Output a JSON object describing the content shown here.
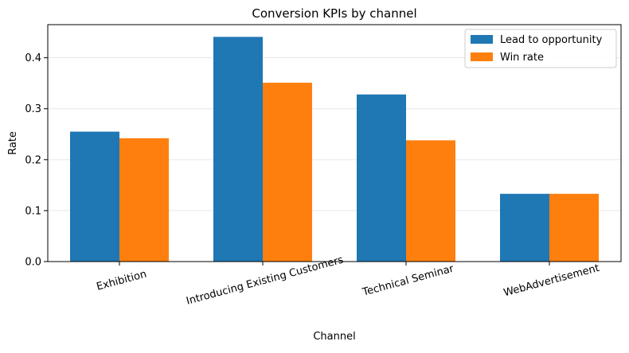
{
  "chart_data": {
    "type": "bar",
    "title": "Conversion KPIs by channel",
    "xlabel": "Channel",
    "ylabel": "Rate",
    "categories": [
      "Exhibition",
      "Introducing Existing Customers",
      "Technical Seminar",
      "WebAdvertisement"
    ],
    "series": [
      {
        "name": "Lead to opportunity",
        "color": "#1f77b4",
        "values": [
          0.255,
          0.441,
          0.328,
          0.133
        ]
      },
      {
        "name": "Win rate",
        "color": "#ff7f0e",
        "values": [
          0.242,
          0.351,
          0.238,
          0.133
        ]
      }
    ],
    "ylim": [
      0,
      0.465
    ],
    "yticks": [
      0.0,
      0.1,
      0.2,
      0.3,
      0.4
    ],
    "ytick_labels": [
      "0.0",
      "0.1",
      "0.2",
      "0.3",
      "0.4"
    ],
    "grid": "horizontal",
    "legend_position": "top-right",
    "xtick_rotation": "angled"
  }
}
